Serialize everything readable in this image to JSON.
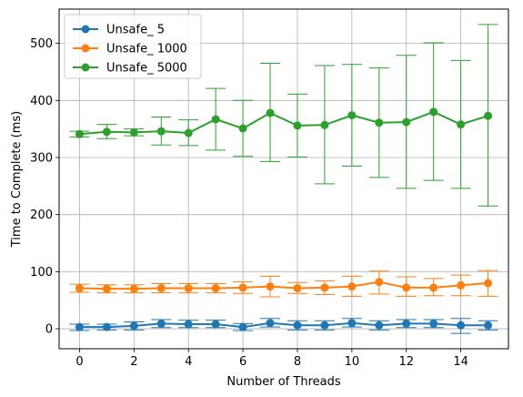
{
  "chart_data": {
    "type": "line",
    "xlabel": "Number of Threads",
    "ylabel": "Time to Complete (ms)",
    "xlim": [
      -0.75,
      15.75
    ],
    "ylim": [
      -35,
      560
    ],
    "x_ticks": [
      0,
      2,
      4,
      6,
      8,
      10,
      12,
      14
    ],
    "y_ticks": [
      0,
      100,
      200,
      300,
      400,
      500
    ],
    "grid": true,
    "legend_position": "top-left",
    "x": [
      0,
      1,
      2,
      3,
      4,
      5,
      6,
      7,
      8,
      9,
      10,
      11,
      12,
      13,
      14,
      15
    ],
    "series": [
      {
        "name": "Unsafe_ 5",
        "color": "#1f77b4",
        "values": [
          3,
          3,
          5,
          9,
          8,
          8,
          3,
          10,
          6,
          6,
          10,
          6,
          9,
          9,
          6,
          6
        ],
        "err_low": [
          -3,
          -2,
          -2,
          2,
          2,
          2,
          -3,
          3,
          -2,
          -2,
          3,
          -2,
          2,
          2,
          -8,
          -2
        ],
        "err_high": [
          8,
          8,
          12,
          16,
          15,
          15,
          9,
          18,
          14,
          14,
          18,
          14,
          16,
          16,
          18,
          14
        ]
      },
      {
        "name": "Unsafe_ 1000",
        "color": "#ff7f0e",
        "values": [
          71,
          70,
          70,
          71,
          71,
          71,
          72,
          74,
          71,
          72,
          74,
          82,
          72,
          72,
          76,
          80
        ],
        "err_low": [
          64,
          63,
          63,
          63,
          63,
          63,
          62,
          56,
          62,
          60,
          57,
          61,
          57,
          58,
          58,
          57
        ],
        "err_high": [
          78,
          77,
          77,
          79,
          79,
          79,
          82,
          92,
          81,
          84,
          92,
          101,
          91,
          88,
          94,
          102
        ]
      },
      {
        "name": "Unsafe_ 5000",
        "color": "#2ca02c",
        "values": [
          341,
          345,
          344,
          346,
          343,
          367,
          351,
          378,
          356,
          357,
          374,
          361,
          362,
          380,
          358,
          373
        ],
        "err_low": [
          336,
          333,
          338,
          322,
          321,
          313,
          302,
          293,
          301,
          254,
          285,
          265,
          246,
          260,
          246,
          215
        ],
        "err_high": [
          346,
          358,
          350,
          371,
          366,
          421,
          400,
          465,
          411,
          461,
          463,
          457,
          479,
          501,
          470,
          533
        ]
      }
    ]
  }
}
